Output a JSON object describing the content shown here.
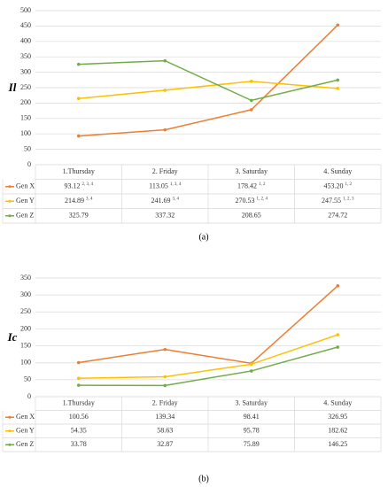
{
  "chart_data": [
    {
      "type": "line",
      "y_label": "Il",
      "caption": "(a)",
      "categories": [
        "1.Thursday",
        "2. Friday",
        "3. Saturday",
        "4. Sunday"
      ],
      "series": [
        {
          "name": "Gen X",
          "color": "#ed7d31",
          "values": [
            93.12,
            113.05,
            178.42,
            453.2
          ],
          "value_labels": [
            "93.12",
            "113.05",
            "178.42",
            "453.20"
          ],
          "superscripts": [
            "2, 3, 4",
            "1, 3, 4",
            "1, 2",
            "1, 2"
          ]
        },
        {
          "name": "Gen Y",
          "color": "#ffc000",
          "values": [
            214.89,
            241.69,
            270.53,
            247.55
          ],
          "superscripts": [
            "3, 4",
            "3, 4",
            "1, 2, 4",
            "1, 2, 3"
          ]
        },
        {
          "name": "Gen Z",
          "color": "#70ad47",
          "values": [
            325.79,
            337.32,
            208.65,
            274.72
          ]
        }
      ],
      "ylim": [
        0,
        500
      ],
      "yticks": [
        0,
        50,
        100,
        150,
        200,
        250,
        300,
        350,
        400,
        450,
        500
      ],
      "grid": true
    },
    {
      "type": "line",
      "y_label": "Ic",
      "caption": "(b)",
      "categories": [
        "1.Thursday",
        "2. Friday",
        "3. Saturday",
        "4. Sunday"
      ],
      "series": [
        {
          "name": "Gen X",
          "color": "#ed7d31",
          "values": [
            100.56,
            139.34,
            98.41,
            326.95
          ]
        },
        {
          "name": "Gen Y",
          "color": "#ffc000",
          "values": [
            54.35,
            58.63,
            95.78,
            182.62
          ]
        },
        {
          "name": "Gen Z",
          "color": "#70ad47",
          "values": [
            33.78,
            32.87,
            75.89,
            146.25
          ]
        }
      ],
      "ylim": [
        0,
        350
      ],
      "yticks": [
        0,
        50,
        100,
        150,
        200,
        250,
        300,
        350
      ],
      "grid": true
    }
  ]
}
